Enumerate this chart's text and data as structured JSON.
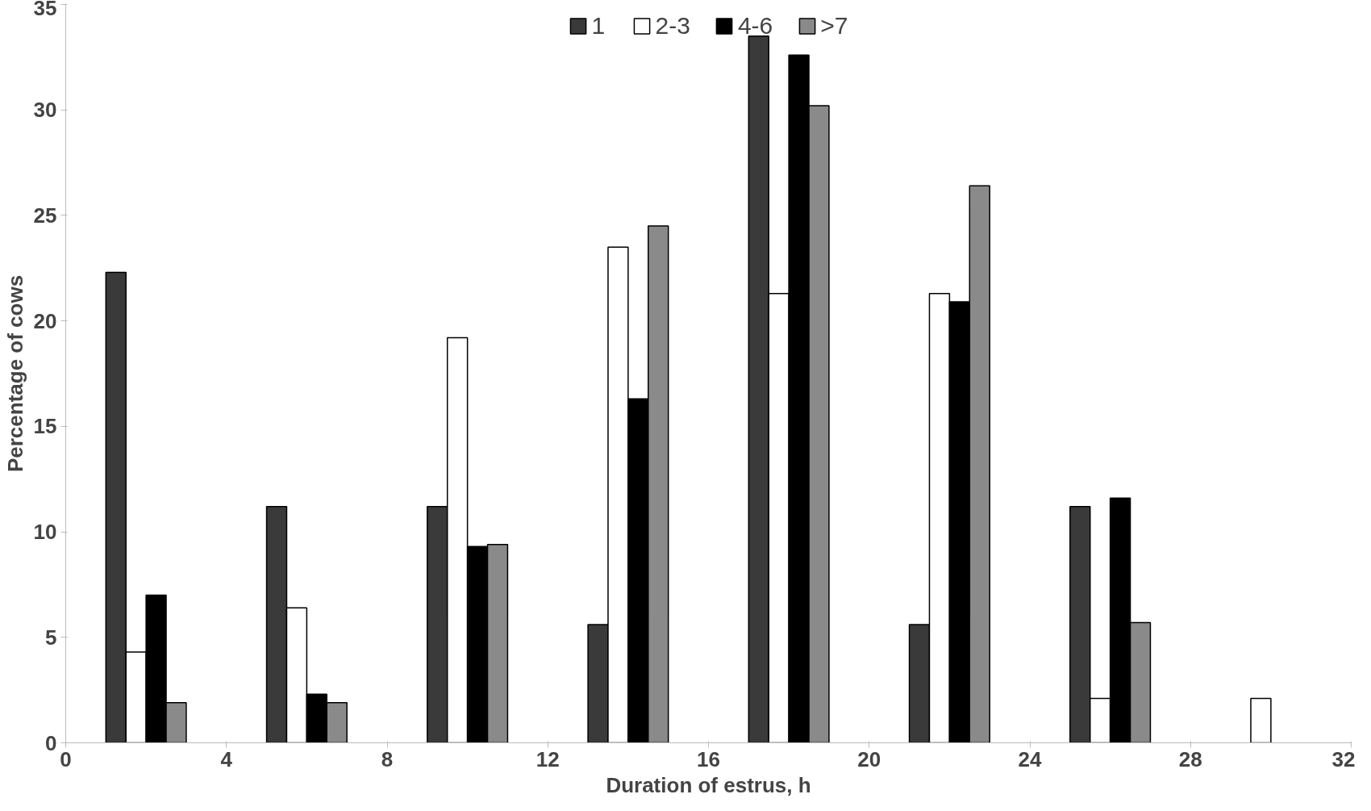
{
  "chart_data": {
    "type": "bar",
    "xlabel": "Duration of estrus, h",
    "ylabel": "Percentage of cows",
    "x": [
      2,
      6,
      10,
      14,
      18,
      22,
      26,
      30
    ],
    "series": [
      {
        "name": "1",
        "color": "#3a3a3a",
        "values": [
          22.3,
          11.2,
          11.2,
          5.6,
          33.5,
          5.6,
          11.2,
          null
        ]
      },
      {
        "name": "2-3",
        "color": "#ffffff",
        "values": [
          4.3,
          6.4,
          19.2,
          23.5,
          21.3,
          21.3,
          2.1,
          2.1
        ]
      },
      {
        "name": "4-6",
        "color": "#000000",
        "values": [
          7.0,
          2.3,
          9.3,
          16.3,
          32.6,
          20.9,
          11.6,
          null
        ]
      },
      {
        "name": ">7",
        "color": "#8a8a8a",
        "values": [
          1.9,
          1.9,
          9.4,
          24.5,
          30.2,
          26.4,
          5.7,
          null
        ]
      }
    ],
    "xlim": [
      0,
      32
    ],
    "xticks": [
      0,
      4,
      8,
      12,
      16,
      20,
      24,
      28,
      32
    ],
    "ylim": [
      0,
      35
    ],
    "yticks": [
      0,
      5,
      10,
      15,
      20,
      25,
      30,
      35
    ],
    "grid": false,
    "legend": "top"
  }
}
